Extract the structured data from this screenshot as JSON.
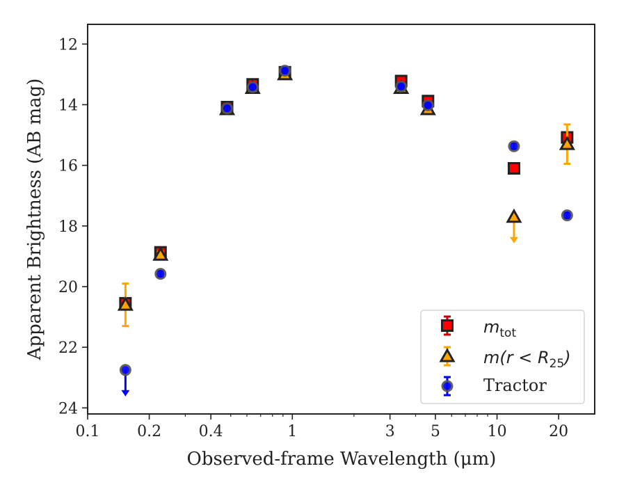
{
  "chart_data": {
    "type": "scatter",
    "title": "",
    "xlabel": "Observed-frame Wavelength (μm)",
    "ylabel": "Apparent Brightness (AB mag)",
    "x_scale": "log",
    "xlim": [
      0.1,
      30
    ],
    "ylim": [
      24.2,
      11.35
    ],
    "y_inverted": true,
    "grid": false,
    "legend_position": "lower-right",
    "x_ticks": [
      {
        "value": 0.1,
        "label": "0.1"
      },
      {
        "value": 0.2,
        "label": "0.2"
      },
      {
        "value": 0.4,
        "label": "0.4"
      },
      {
        "value": 1,
        "label": "1"
      },
      {
        "value": 3,
        "label": "3"
      },
      {
        "value": 5,
        "label": "5"
      },
      {
        "value": 10,
        "label": "10"
      },
      {
        "value": 20,
        "label": "20"
      }
    ],
    "y_ticks": [
      {
        "value": 12,
        "label": "12"
      },
      {
        "value": 14,
        "label": "14"
      },
      {
        "value": 16,
        "label": "16"
      },
      {
        "value": 18,
        "label": "18"
      },
      {
        "value": 20,
        "label": "20"
      },
      {
        "value": 22,
        "label": "22"
      },
      {
        "value": 24,
        "label": "24"
      }
    ],
    "series": [
      {
        "name": "m_tot",
        "marker": "square",
        "color": "#ff0000",
        "edge_color": "#222222",
        "error_color": "#cc0000",
        "points": [
          {
            "x": 0.153,
            "y": 20.55,
            "err": 0.1
          },
          {
            "x": 0.227,
            "y": 18.87,
            "err": 0.1
          },
          {
            "x": 0.48,
            "y": 14.08,
            "err": 0.1
          },
          {
            "x": 0.64,
            "y": 13.33,
            "err": 0.1
          },
          {
            "x": 0.92,
            "y": 12.93,
            "err": 0.1
          },
          {
            "x": 3.4,
            "y": 13.22,
            "err": 0.1
          },
          {
            "x": 4.6,
            "y": 13.88,
            "err": 0.1
          },
          {
            "x": 12.1,
            "y": 16.1,
            "err": 0.1
          },
          {
            "x": 22.0,
            "y": 15.08,
            "err": 0.1
          }
        ]
      },
      {
        "name": "m(r < R25)",
        "marker": "triangle",
        "color": "#ffa500",
        "edge_color": "#222222",
        "error_color": "#ffa500",
        "points": [
          {
            "x": 0.153,
            "y": 20.6,
            "err": 0.7
          },
          {
            "x": 0.227,
            "y": 18.95,
            "err": 0.1
          },
          {
            "x": 0.48,
            "y": 14.15,
            "err": 0.1
          },
          {
            "x": 0.64,
            "y": 13.45,
            "err": 0.1
          },
          {
            "x": 0.92,
            "y": 13.0,
            "err": 0.1
          },
          {
            "x": 3.4,
            "y": 13.45,
            "err": 0.1
          },
          {
            "x": 4.6,
            "y": 14.15,
            "err": 0.1
          },
          {
            "x": 12.1,
            "y": 17.7,
            "upper_limit": true
          },
          {
            "x": 22.0,
            "y": 15.3,
            "err": 0.65
          }
        ]
      },
      {
        "name": "Tractor",
        "marker": "circle",
        "color": "#0000ff",
        "edge_color": "#555555",
        "error_color": "#0000ff",
        "points": [
          {
            "x": 0.153,
            "y": 22.75,
            "upper_limit": true
          },
          {
            "x": 0.227,
            "y": 19.58,
            "err": 0.1
          },
          {
            "x": 0.48,
            "y": 14.12,
            "err": 0.1
          },
          {
            "x": 0.64,
            "y": 13.42,
            "err": 0.1
          },
          {
            "x": 0.92,
            "y": 12.88,
            "err": 0.1
          },
          {
            "x": 3.4,
            "y": 13.4,
            "err": 0.1
          },
          {
            "x": 4.6,
            "y": 14.02,
            "err": 0.1
          },
          {
            "x": 12.1,
            "y": 15.37,
            "err": 0.1
          },
          {
            "x": 22.0,
            "y": 17.65,
            "err": 0.1
          }
        ]
      }
    ]
  },
  "legend": {
    "mtot_main": "m",
    "mtot_sub": "tot",
    "mr_prefix": "m(r < R",
    "mr_sub": "25",
    "mr_suffix": ")",
    "tractor": "Tractor"
  }
}
